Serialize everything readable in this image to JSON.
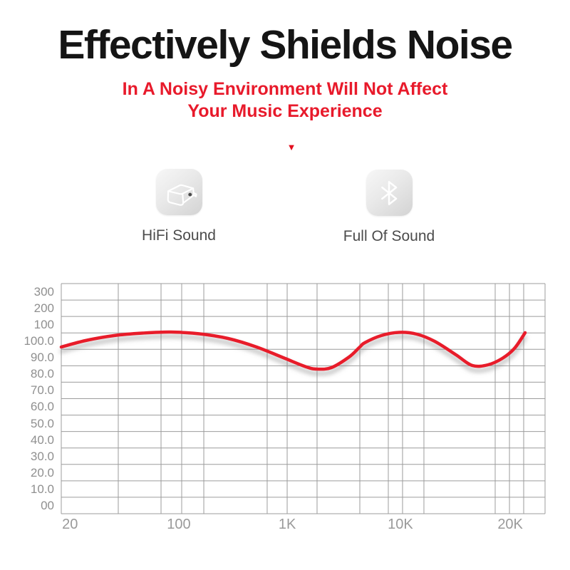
{
  "page": {
    "background": "#ffffff",
    "accent_red": "#e81a2b"
  },
  "header": {
    "title": "Effectively Shields Noise",
    "subtitle_line1": "In A Noisy Environment Will Not Affect",
    "subtitle_line2": "Your Music Experience",
    "marker_glyph": "▼"
  },
  "features": [
    {
      "icon": "hifi-driver-icon",
      "label": "HiFi Sound"
    },
    {
      "icon": "bluetooth-icon",
      "label": "Full Of Sound"
    }
  ],
  "chart_data": {
    "type": "line",
    "title": "",
    "xlabel": "",
    "ylabel": "",
    "legend": "none",
    "grid": true,
    "grid_color": "#9c9c9c",
    "line_color": "#e81a2b",
    "x_tick_labels": [
      "20",
      "100",
      "1K",
      "10K",
      "20K"
    ],
    "x_tick_pos_pct": [
      1.8,
      24.3,
      46.7,
      70.1,
      92.8
    ],
    "y_tick_labels": [
      "300",
      "200",
      "100",
      "100.0",
      "90.0",
      "80.0",
      "70.0",
      "60.0",
      "50.0",
      "40.0",
      "30.0",
      "20.0",
      "10.0",
      "00"
    ],
    "y_rows": 14,
    "x_gridlines_pct": [
      0,
      11.78,
      20.62,
      24.89,
      29.46,
      42.56,
      46.69,
      52.87,
      61.71,
      67.6,
      70.54,
      74.96,
      89.69,
      92.64,
      95.58,
      100
    ],
    "curve_points_pct": [
      [
        0,
        27.55
      ],
      [
        5.01,
        24.77
      ],
      [
        10.9,
        22.6
      ],
      [
        16.79,
        21.52
      ],
      [
        22.68,
        21.05
      ],
      [
        28.57,
        21.83
      ],
      [
        34.46,
        23.84
      ],
      [
        40.35,
        27.55
      ],
      [
        46.24,
        32.51
      ],
      [
        50.66,
        36.22
      ],
      [
        52.87,
        37.15
      ],
      [
        55.82,
        36.53
      ],
      [
        59.5,
        31.89
      ],
      [
        61.71,
        27.55
      ],
      [
        62.74,
        25.7
      ],
      [
        66.13,
        22.6
      ],
      [
        69.81,
        21.21
      ],
      [
        73.49,
        21.98
      ],
      [
        77.17,
        25.08
      ],
      [
        81.59,
        30.96
      ],
      [
        84.98,
        35.6
      ],
      [
        88.22,
        35.29
      ],
      [
        91.16,
        32.51
      ],
      [
        93.67,
        28.17
      ],
      [
        95.88,
        21.36
      ]
    ],
    "series": [
      {
        "name": "frequency-response",
        "points_est_hz_level": [
          [
            20,
            97.0
          ],
          [
            28,
            100.9
          ],
          [
            41,
            103.9
          ],
          [
            61,
            105.4
          ],
          [
            90,
            106.1
          ],
          [
            155,
            105.0
          ],
          [
            285,
            102.2
          ],
          [
            520,
            97.0
          ],
          [
            950,
            90.0
          ],
          [
            1500,
            84.8
          ],
          [
            1840,
            83.5
          ],
          [
            2460,
            84.4
          ],
          [
            3520,
            90.9
          ],
          [
            4390,
            97.0
          ],
          [
            4850,
            99.6
          ],
          [
            6760,
            103.9
          ],
          [
            9700,
            105.9
          ],
          [
            11000,
            104.8
          ],
          [
            12400,
            100.4
          ],
          [
            14200,
            92.2
          ],
          [
            15800,
            85.7
          ],
          [
            17500,
            86.1
          ],
          [
            19100,
            90.0
          ],
          [
            20600,
            96.1
          ],
          [
            21600,
            105.7
          ]
        ]
      }
    ]
  }
}
